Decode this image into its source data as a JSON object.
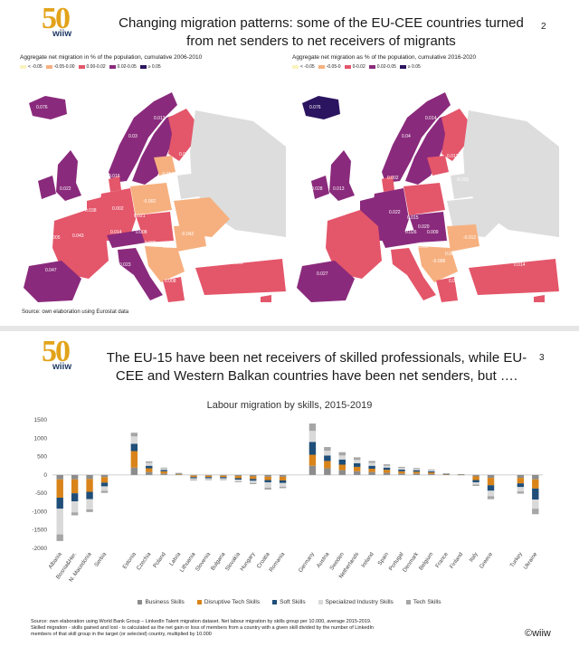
{
  "slide1": {
    "logo": {
      "number": "50",
      "word": "wiiw",
      "years": "1973 2023"
    },
    "title_line1": "Changing migration patterns: some of the EU-CEE countries turned",
    "title_line2": "from net senders to net receivers of migrants",
    "page_number": "2",
    "left_map": {
      "caption": "Aggregate net migration in % of the population, cumulative 2006-2010",
      "legend": [
        {
          "label": "< -0.05",
          "color": "#fbf3bf"
        },
        {
          "label": "-0.05-0.00",
          "color": "#f6b07f"
        },
        {
          "label": "0.00-0.02",
          "color": "#e4566a"
        },
        {
          "label": "0.02-0.05",
          "color": "#8a2a7c"
        },
        {
          "label": "≥ 0.05",
          "color": "#2b1460"
        }
      ],
      "labels": [
        "0.076",
        "0.013",
        "0.03",
        "0.012",
        "-0.054",
        "0.016",
        "0.034",
        "0.022",
        "-0.002",
        "0.038",
        "0.002",
        "0.021",
        "0.005",
        "0.043",
        "0.014",
        "0.008",
        "-0.042",
        "0.005",
        "0.003",
        "-0.012",
        "0.023",
        "0.047",
        "0.006",
        "0.008"
      ]
    },
    "right_map": {
      "caption": "Aggregate net migration as % of the population, cumulative 2016-2020",
      "legend": [
        {
          "label": "< -0.05",
          "color": "#fbf3bf"
        },
        {
          "label": "-0.05-0",
          "color": "#f6b07f"
        },
        {
          "label": "0-0.02",
          "color": "#e4566a"
        },
        {
          "label": "0.02-0.05",
          "color": "#8a2a7c"
        },
        {
          "label": "≥ 0.05",
          "color": "#2b1460"
        }
      ],
      "labels": [
        "0.076",
        "0.014",
        "0.04",
        "0.012",
        "0.017",
        "-0.010",
        "0.028",
        "0.013",
        "0.002",
        "0.022",
        "0.015",
        "0.020",
        "0.026",
        "0.009",
        "-0.012",
        "0.017",
        "-0.008",
        "0.001",
        "0.027",
        "0.007",
        "0.014"
      ]
    },
    "source": "Source: own elaboration using Eurostat data"
  },
  "slide2": {
    "logo": {
      "number": "50",
      "word": "wiiw",
      "years": "1973 2023"
    },
    "title_line1": "The EU-15 have been net receivers of skilled professionals, while EU-",
    "title_line2": "CEE and Western Balkan countries have been net senders, but ….",
    "page_number": "3",
    "chart_title": "Labour migration by skills, 2015-2019",
    "footnote_line1": "Source: own elaboration using World Bank Group – LinkedIn Talent migration dataset. Net labour migration by skills group per 10.000, average 2015-2019.",
    "footnote_line2": "Skilled migration - skills gained and lost - is calculated as the net gain or loss of members from a country with a given skill divided by the number of LinkedIn",
    "footnote_line3": "members of that skill group in the target (or selected) country, multiplied by 10.000",
    "copyright": "©wiiw"
  },
  "chart_data": {
    "type": "bar",
    "stacked": true,
    "title": "Labour migration by skills, 2015-2019",
    "ylim": [
      -2000,
      1500
    ],
    "yticks": [
      -2000,
      -1500,
      -1000,
      -500,
      0,
      500,
      1000,
      1500
    ],
    "grid": false,
    "legend_position": "bottom",
    "colors": {
      "Business Skills": "#8c8c8c",
      "Disruptive Tech Skills": "#d9841a",
      "Soft Skills": "#1f4e79",
      "Specialized Industry Skills": "#d9d9d9",
      "Tech Skills": "#a6a6a6"
    },
    "categories": [
      "Albania",
      "Bosnia&Her.",
      "N. Macedonia",
      "Serbia",
      "",
      "Estonia",
      "Czechia",
      "Poland",
      "Latvia",
      "Lithuania",
      "Slovenia",
      "Bulgaria",
      "Slovakia",
      "Hungary",
      "Croatia",
      "Romania",
      "",
      "Germany",
      "Austria",
      "Sweden",
      "Netherlands",
      "Ireland",
      "Spain",
      "Portugal",
      "Denmark",
      "Belgium",
      "France",
      "Finland",
      "Italy",
      "Greece",
      "",
      "Turkey",
      "Ukraine"
    ],
    "series": [
      {
        "name": "Business Skills",
        "values": [
          -120,
          -120,
          -110,
          -60,
          null,
          200,
          80,
          40,
          10,
          -20,
          -20,
          -20,
          -30,
          -40,
          -50,
          -50,
          null,
          250,
          180,
          130,
          100,
          80,
          60,
          40,
          40,
          30,
          10,
          5,
          -40,
          -80,
          null,
          -80,
          -120
        ]
      },
      {
        "name": "Disruptive Tech Skills",
        "values": [
          -500,
          -380,
          -350,
          -150,
          null,
          450,
          100,
          60,
          20,
          -40,
          -40,
          -40,
          -60,
          -70,
          -90,
          -100,
          null,
          300,
          200,
          150,
          120,
          90,
          80,
          60,
          50,
          40,
          10,
          5,
          -100,
          -200,
          null,
          -150,
          -250
        ]
      },
      {
        "name": "Soft Skills",
        "values": [
          -300,
          -220,
          -200,
          -100,
          null,
          200,
          70,
          40,
          10,
          -30,
          -30,
          -30,
          -40,
          -50,
          -60,
          -70,
          null,
          350,
          150,
          140,
          100,
          80,
          60,
          50,
          40,
          30,
          10,
          5,
          -60,
          -150,
          null,
          -100,
          -300
        ]
      },
      {
        "name": "Specialized Industry Skills",
        "values": [
          -700,
          -300,
          -280,
          -120,
          null,
          200,
          80,
          40,
          10,
          -40,
          -30,
          -30,
          -50,
          -60,
          -150,
          -100,
          null,
          300,
          130,
          110,
          90,
          80,
          50,
          40,
          40,
          30,
          10,
          5,
          -60,
          -150,
          null,
          -120,
          -250
        ]
      },
      {
        "name": "Tech Skills",
        "values": [
          -180,
          -80,
          -70,
          -60,
          null,
          100,
          40,
          20,
          5,
          -20,
          -20,
          -20,
          -20,
          -30,
          -50,
          -40,
          null,
          200,
          100,
          90,
          70,
          50,
          40,
          30,
          20,
          20,
          5,
          2,
          -40,
          -80,
          null,
          -60,
          -150
        ]
      }
    ]
  }
}
